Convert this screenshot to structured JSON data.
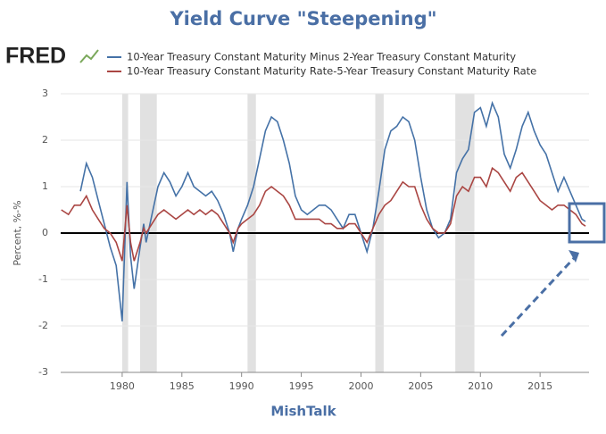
{
  "chart_data": {
    "type": "line",
    "title": "Yield Curve \"Steepening\"",
    "logo": "FRED",
    "ylabel": "Percent, %-%",
    "caption": "MishTalk",
    "xlim": [
      1974.85,
      2019.1
    ],
    "xticks": [
      1980,
      1985,
      1990,
      1995,
      2000,
      2005,
      2010,
      2015
    ],
    "ylim": [
      -3,
      3
    ],
    "yticks": [
      -3,
      -2,
      -1,
      0,
      1,
      2,
      3
    ],
    "grid": true,
    "recessions": [
      [
        1980.0,
        1980.5
      ],
      [
        1981.5,
        1982.9
      ],
      [
        1990.5,
        1991.2
      ],
      [
        2001.2,
        2001.9
      ],
      [
        2007.9,
        2009.5
      ]
    ],
    "x": [
      1974.9,
      1975.5,
      1976,
      1976.5,
      1977,
      1977.5,
      1978,
      1978.5,
      1979,
      1979.5,
      1980,
      1980.4,
      1980.7,
      1981,
      1981.5,
      1981.8,
      1982,
      1982.5,
      1983,
      1983.5,
      1984,
      1984.5,
      1985,
      1985.5,
      1986,
      1986.5,
      1987,
      1987.5,
      1988,
      1988.5,
      1989,
      1989.3,
      1989.7,
      1990,
      1990.5,
      1991,
      1991.5,
      1992,
      1992.5,
      1993,
      1993.5,
      1994,
      1994.5,
      1995,
      1995.5,
      1996,
      1996.5,
      1997,
      1997.5,
      1998,
      1998.5,
      1999,
      1999.5,
      2000,
      2000.5,
      2001,
      2001.5,
      2002,
      2002.5,
      2003,
      2003.5,
      2004,
      2004.5,
      2005,
      2005.5,
      2006,
      2006.5,
      2007,
      2007.5,
      2008,
      2008.5,
      2009,
      2009.5,
      2010,
      2010.5,
      2011,
      2011.5,
      2012,
      2012.5,
      2013,
      2013.5,
      2014,
      2014.5,
      2015,
      2015.5,
      2016,
      2016.5,
      2017,
      2017.5,
      2018,
      2018.5,
      2018.8
    ],
    "series": [
      {
        "name": "10-Year Treasury Constant Maturity Minus 2-Year Treasury Constant Maturity",
        "color": "#4572a7",
        "values": [
          null,
          null,
          null,
          0.9,
          1.5,
          1.2,
          0.7,
          0.2,
          -0.3,
          -0.7,
          -1.9,
          1.1,
          -0.5,
          -1.2,
          -0.3,
          0.2,
          -0.2,
          0.4,
          1.0,
          1.3,
          1.1,
          0.8,
          1.0,
          1.3,
          1.0,
          0.9,
          0.8,
          0.9,
          0.7,
          0.4,
          0.0,
          -0.4,
          0.1,
          0.3,
          0.6,
          1.0,
          1.6,
          2.2,
          2.5,
          2.4,
          2.0,
          1.5,
          0.8,
          0.5,
          0.4,
          0.5,
          0.6,
          0.6,
          0.5,
          0.3,
          0.1,
          0.4,
          0.4,
          0.0,
          -0.4,
          0.1,
          0.9,
          1.8,
          2.2,
          2.3,
          2.5,
          2.4,
          2.0,
          1.2,
          0.5,
          0.1,
          -0.1,
          0.0,
          0.3,
          1.3,
          1.6,
          1.8,
          2.6,
          2.7,
          2.3,
          2.8,
          2.5,
          1.7,
          1.4,
          1.8,
          2.3,
          2.6,
          2.2,
          1.9,
          1.7,
          1.3,
          0.9,
          1.2,
          0.9,
          0.6,
          0.3,
          0.25
        ]
      },
      {
        "name": "10-Year Treasury Constant Maturity Rate-5-Year Treasury Constant Maturity Rate",
        "color": "#aa4643",
        "values": [
          0.5,
          0.4,
          0.6,
          0.6,
          0.8,
          0.5,
          0.3,
          0.1,
          0.0,
          -0.2,
          -0.6,
          0.6,
          -0.2,
          -0.6,
          -0.2,
          0.1,
          0.0,
          0.2,
          0.4,
          0.5,
          0.4,
          0.3,
          0.4,
          0.5,
          0.4,
          0.5,
          0.4,
          0.5,
          0.4,
          0.2,
          0.0,
          -0.2,
          0.1,
          0.2,
          0.3,
          0.4,
          0.6,
          0.9,
          1.0,
          0.9,
          0.8,
          0.6,
          0.3,
          0.3,
          0.3,
          0.3,
          0.3,
          0.2,
          0.2,
          0.1,
          0.1,
          0.2,
          0.2,
          0.0,
          -0.2,
          0.1,
          0.4,
          0.6,
          0.7,
          0.9,
          1.1,
          1.0,
          1.0,
          0.6,
          0.3,
          0.1,
          0.0,
          0.0,
          0.2,
          0.8,
          1.0,
          0.9,
          1.2,
          1.2,
          1.0,
          1.4,
          1.3,
          1.1,
          0.9,
          1.2,
          1.3,
          1.1,
          0.9,
          0.7,
          0.6,
          0.5,
          0.6,
          0.6,
          0.5,
          0.4,
          0.2,
          0.15
        ]
      }
    ]
  }
}
